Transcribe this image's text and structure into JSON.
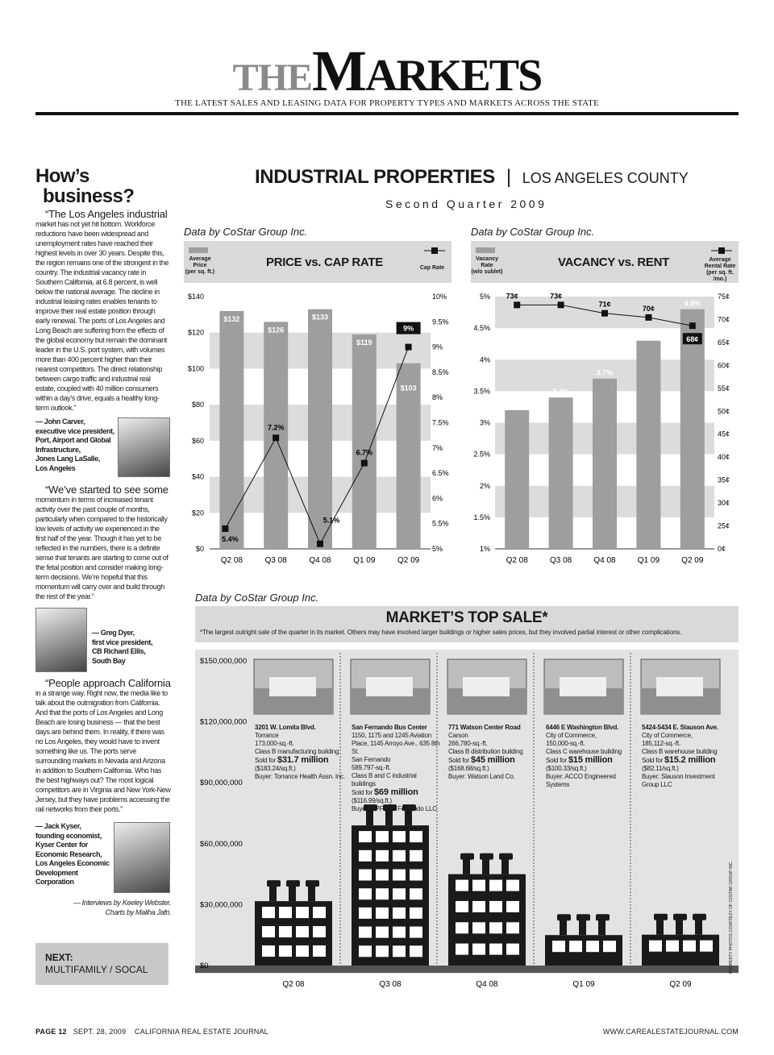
{
  "masthead": {
    "the": "THE",
    "markets_m": "M",
    "markets_rest": "ARKETS",
    "subtitle": "THE LATEST SALES AND LEASING DATA FOR PROPERTY TYPES AND MARKETS ACROSS THE STATE"
  },
  "section": {
    "title": "INDUSTRIAL PROPERTIES",
    "divider": "|",
    "county": "LOS ANGELES COUNTY",
    "quarter": "Second Quarter 2009"
  },
  "sidebar": {
    "heading_1": "How’s",
    "heading_2": "business?",
    "quote_1_lead": "“The Los Angeles industrial",
    "quote_1": "market has not yet hit bottom. Workforce reductions have been widespread and unemployment rates have reached their highest levels in over 30 years. Despite this, the region remains one of the strongest in the country. The industrial vacancy rate in Southern California, at 6.8 percent, is well below the national average. The decline in industrial leasing rates enables tenants to improve their real estate position through early renewal. The ports of Los Angeles and Long Beach are suffering from the effects of the global economy but remain the dominant leader in the U.S. port system, with volumes more than 400 percent higher than their nearest competitors. The direct relationship between cargo traffic and industrial real estate, coupled with 40 million consumers within a day’s drive, equals a healthy long-term outlook.”",
    "attr_1": [
      "— John Carver,",
      "executive vice president,",
      "Port, Airport and Global",
      "Infrastructure,",
      "Jones Lang LaSalle,",
      "Los Angeles"
    ],
    "quote_2_lead": "“We’ve started to see some",
    "quote_2": "momentum in terms of increased tenant activity over the past couple of months, particularly when compared to the historically low levels of activity we experienced in the first half of the year. Though it has yet to be reflected in the numbers, there is a definite sense that tenants are starting to come out of the fetal position and consider making long-term decisions. We’re hopeful that this momentum will carry over and build through the rest of the year.”",
    "attr_2": [
      "— Greg Dyer,",
      "first vice president,",
      "CB Richard Ellis,",
      "South Bay"
    ],
    "quote_3_lead": "“People approach California",
    "quote_3": "in a strange way. Right now, the media like to talk about the outmigration from California. And that the ports of Los Angeles and Long Beach are losing business — that the best days are behind them. In reality, if there was no Los Angeles, they would have to invent something like us. The ports serve surrounding markets in Nevada and Arizona in addition to Southern California. Who has the best highways out? The most logical competitors are in Virginia and New York-New Jersey, but they have problems accessing the rail networks from their ports.”",
    "attr_3": [
      "— Jack Kyser,",
      "founding economist,",
      "Kyser Center for",
      "Economic Research,",
      "Los Angeles Economic",
      "Development",
      "Corporation"
    ],
    "credit_1": "— Interviews by Keeley Webster.",
    "credit_2": "Charts by Maliha Jafri.",
    "next_label": "NEXT:",
    "next_value": "MULTIFAMILY / SOCAL"
  },
  "chart_data": [
    {
      "type": "bar",
      "source": "Data by CoStar Group Inc.",
      "title": "PRICE vs. CAP RATE",
      "legend_left": [
        "Average",
        "Price",
        "(per sq. ft.)"
      ],
      "legend_right": "Cap Rate",
      "categories": [
        "Q2 08",
        "Q3 08",
        "Q4 08",
        "Q1 09",
        "Q2 09"
      ],
      "series": [
        {
          "name": "Average Price",
          "kind": "bar",
          "values": [
            132,
            126,
            133,
            119,
            103
          ],
          "labels": [
            "$132",
            "$126",
            "$133",
            "$119",
            "$103"
          ]
        },
        {
          "name": "Cap Rate",
          "kind": "line",
          "values": [
            5.4,
            7.2,
            5.1,
            6.7,
            9
          ],
          "labels": [
            "5.4%",
            "7.2%",
            "5.1%",
            "6.7%",
            "9%"
          ]
        }
      ],
      "ylim_left": [
        0,
        140
      ],
      "yticks_left": [
        "$0",
        "$20",
        "$40",
        "$60",
        "$80",
        "$100",
        "$120",
        "$140"
      ],
      "ylim_right": [
        5,
        10
      ],
      "yticks_right": [
        "5%",
        "5.5%",
        "6%",
        "6.5%",
        "7%",
        "7.5%",
        "8%",
        "8.5%",
        "9%",
        "9.5%",
        "10%"
      ]
    },
    {
      "type": "bar",
      "source": "Data by CoStar Group Inc.",
      "title": "VACANCY vs. RENT",
      "legend_left": [
        "Vacancy",
        "Rate",
        "(w/o sublet)"
      ],
      "legend_right": [
        "Average",
        "Rental Rate",
        "(per sq. ft. /mo.)"
      ],
      "categories": [
        "Q2 08",
        "Q3 08",
        "Q4 08",
        "Q1 09",
        "Q2 09"
      ],
      "series": [
        {
          "name": "Vacancy Rate",
          "kind": "bar",
          "values": [
            3.2,
            3.4,
            3.7,
            4.3,
            4.8
          ],
          "labels": [
            "3.2%",
            "3.4%",
            "3.7%",
            "4.3%",
            "4.8%"
          ]
        },
        {
          "name": "Average Rental Rate",
          "kind": "line",
          "values": [
            73,
            73,
            71,
            70,
            68
          ],
          "labels": [
            "73¢",
            "73¢",
            "71¢",
            "70¢",
            "68¢"
          ]
        }
      ],
      "ylim_left": [
        1,
        5
      ],
      "yticks_left": [
        "1%",
        "1.5%",
        "2%",
        "2.5%",
        "3%",
        "3.5%",
        "4%",
        "4.5%",
        "5%"
      ],
      "ylim_right": [
        0,
        75
      ],
      "yticks_right": [
        "0¢",
        "25¢",
        "30¢",
        "35¢",
        "40¢",
        "45¢",
        "50¢",
        "55¢",
        "60¢",
        "65¢",
        "70¢",
        "75¢"
      ]
    },
    {
      "type": "bar",
      "source": "Data by CoStar Group Inc.",
      "title": "MARKET’S TOP SALE*",
      "note": "*The largest outright sale of the quarter in its market. Others may have involved larger buildings or higher sales prices, but they involved partial interest or other complications.",
      "categories": [
        "Q2 08",
        "Q3 08",
        "Q4 08",
        "Q1 09",
        "Q2 09"
      ],
      "values": [
        31700000,
        69000000,
        45000000,
        15000000,
        15200000
      ],
      "ylim": [
        0,
        150000000
      ],
      "yticks": [
        "$0",
        "$30,000,000",
        "$60,000,000",
        "$90,000,000",
        "$120,000,000",
        "$150,000,000"
      ],
      "photo_credit": "PROPERTY PHOTOS COURTESY OF COSTAR GROUP INC."
    }
  ],
  "sales": [
    {
      "address": "3201 W. Lomita Blvd.",
      "lines": [
        "Torrance",
        "173,000-sq.-ft.",
        "Class B manufacturing building"
      ],
      "sold_prefix": "Sold for",
      "sold": "$31.7 million",
      "after": [
        "($183.24/sq.ft.)",
        "Buyer: Torrance Health Assn. Inc."
      ]
    },
    {
      "address": "San Fernando Bus Center",
      "lines": [
        "1150, 1175 and 1245 Aviation",
        "Place, 1145 Arroyo Ave., 635 8th St.",
        "San Fernando",
        "589,797-sq.-ft.",
        "Class B and C industrial",
        "buildings"
      ],
      "sold_prefix": "Sold for",
      "sold": "$69 million",
      "after": [
        "($116.99/sq.ft.)",
        "Buyer: CPF San Fernando LLC"
      ]
    },
    {
      "address": "771 Watson Center Road",
      "lines": [
        "Carson",
        "266,780-sq.-ft.",
        "Class B distribution building"
      ],
      "sold_prefix": "Sold for",
      "sold": "$45 million",
      "after": [
        "($168.68/sq.ft.)",
        "Buyer: Watson Land Co."
      ]
    },
    {
      "address": "6446 E Washington Blvd.",
      "lines": [
        "City of Commerce,",
        "150,000-sq.-ft.",
        "Class C warehouse building"
      ],
      "sold_prefix": "Sold for",
      "sold": "$15 million",
      "after": [
        "($100.33/sq.ft.)",
        "Buyer: ACCO Engineered",
        "Systems"
      ]
    },
    {
      "address": "5424-5434 E. Slauson Ave.",
      "lines": [
        "City of Commerce,",
        "185,112-sq.-ft.",
        "Class B warehouse building"
      ],
      "sold_prefix": "Sold for",
      "sold": "$15.2 million",
      "after": [
        "($82.11/sq.ft.)",
        "Buyer: Slauson Investment",
        "Group LLC"
      ]
    }
  ],
  "footer": {
    "page": "PAGE 12",
    "date": "SEPT. 28, 2009",
    "pub": "CALIFORNIA REAL ESTATE JOURNAL",
    "url": "WWW.CAREALESTATEJOURNAL.COM"
  },
  "colors": {
    "bar": "#9e9e9e",
    "band": "#dcdcdc",
    "line": "#111111",
    "panel": "#d9d9d9"
  }
}
